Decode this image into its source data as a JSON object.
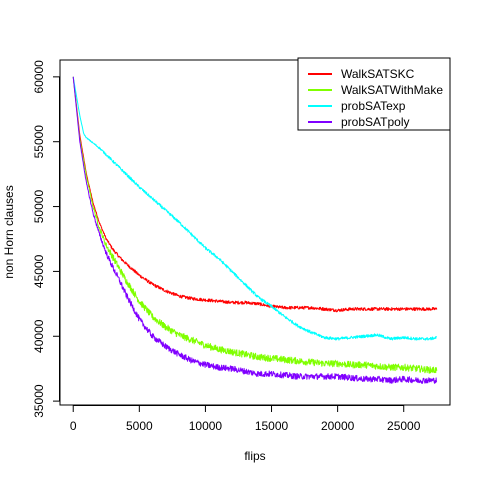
{
  "chart_data": {
    "type": "line",
    "title": "",
    "xlabel": "flips",
    "ylabel": "non Horn clauses",
    "xlim": [
      -1000,
      28500
    ],
    "ylim": [
      34700,
      61300
    ],
    "xticks": [
      0,
      5000,
      10000,
      15000,
      20000,
      25000
    ],
    "yticks": [
      35000,
      40000,
      45000,
      50000,
      55000,
      60000
    ],
    "grid": false,
    "legend": "top-right",
    "series": [
      {
        "name": "WalkSATSKC",
        "color": "#ff0000",
        "x": [
          0,
          500,
          1000,
          1500,
          2000,
          2500,
          3000,
          3500,
          4000,
          5000,
          6000,
          7000,
          8000,
          9000,
          10000,
          11000,
          12000,
          13000,
          14000,
          15000,
          16000,
          17000,
          18000,
          19000,
          20000,
          21000,
          22000,
          23000,
          24000,
          25000,
          26000,
          27000,
          27500
        ],
        "y": [
          60000,
          55500,
          52500,
          50300,
          48700,
          47500,
          46700,
          46100,
          45600,
          44700,
          44000,
          43500,
          43100,
          42900,
          42800,
          42700,
          42600,
          42600,
          42500,
          42300,
          42200,
          42200,
          42200,
          42100,
          42000,
          42100,
          42100,
          42100,
          42100,
          42100,
          42100,
          42100,
          42100
        ],
        "noise": 120
      },
      {
        "name": "WalkSATWithMake",
        "color": "#80ff00",
        "x": [
          0,
          500,
          1000,
          1500,
          2000,
          2500,
          3000,
          3500,
          4000,
          5000,
          6000,
          7000,
          8000,
          9000,
          10000,
          11000,
          12000,
          13000,
          14000,
          15000,
          16000,
          17000,
          18000,
          19000,
          20000,
          21000,
          22000,
          23000,
          24000,
          25000,
          26000,
          27000,
          27500
        ],
        "y": [
          60000,
          55200,
          52300,
          50000,
          48300,
          47000,
          46100,
          45200,
          44300,
          42700,
          41500,
          40700,
          40100,
          39700,
          39300,
          39000,
          38800,
          38600,
          38400,
          38300,
          38200,
          38100,
          38000,
          37900,
          37900,
          37800,
          37800,
          37700,
          37600,
          37600,
          37500,
          37400,
          37400
        ],
        "noise": 260
      },
      {
        "name": "probSATexp",
        "color": "#00ffff",
        "x": [
          0,
          500,
          800,
          1000,
          2000,
          3000,
          4000,
          5000,
          6000,
          7000,
          8000,
          9000,
          10000,
          11000,
          12000,
          13000,
          14000,
          15000,
          16000,
          17000,
          18000,
          19000,
          20000,
          21000,
          22000,
          23000,
          24000,
          25000,
          26000,
          27000,
          27500
        ],
        "y": [
          60000,
          57000,
          55600,
          55300,
          54500,
          53500,
          52500,
          51500,
          50600,
          49700,
          48800,
          47800,
          46800,
          46000,
          45000,
          44000,
          43000,
          42300,
          41500,
          40800,
          40300,
          39900,
          39800,
          39900,
          40000,
          40100,
          39800,
          39900,
          39800,
          39800,
          39900
        ],
        "noise": 110
      },
      {
        "name": "probSATpoly",
        "color": "#8000ff",
        "x": [
          0,
          500,
          1000,
          1500,
          2000,
          2500,
          3000,
          3500,
          4000,
          5000,
          6000,
          7000,
          8000,
          9000,
          10000,
          11000,
          12000,
          13000,
          14000,
          15000,
          16000,
          17000,
          18000,
          19000,
          20000,
          21000,
          22000,
          23000,
          24000,
          25000,
          26000,
          27000,
          27500
        ],
        "y": [
          60000,
          55000,
          51800,
          49500,
          47800,
          46400,
          45300,
          44300,
          43200,
          41300,
          40000,
          39200,
          38600,
          38100,
          37800,
          37600,
          37500,
          37300,
          37100,
          37100,
          37000,
          36900,
          36900,
          36900,
          36900,
          36800,
          36700,
          36700,
          36600,
          36700,
          36600,
          36600,
          36600
        ],
        "noise": 230
      }
    ]
  }
}
